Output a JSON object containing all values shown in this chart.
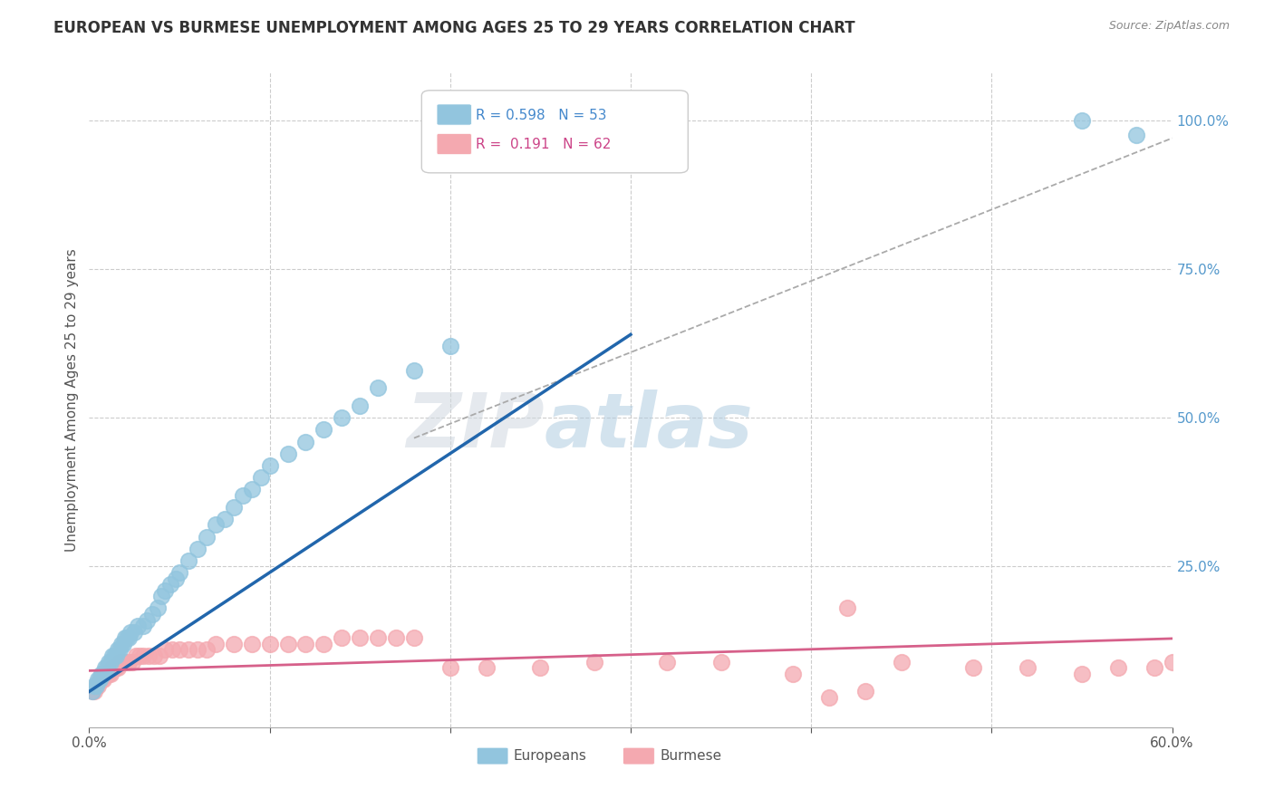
{
  "title": "EUROPEAN VS BURMESE UNEMPLOYMENT AMONG AGES 25 TO 29 YEARS CORRELATION CHART",
  "source": "Source: ZipAtlas.com",
  "ylabel": "Unemployment Among Ages 25 to 29 years",
  "watermark_zip": "ZIP",
  "watermark_atlas": "atlas",
  "xlim": [
    0.0,
    0.6
  ],
  "ylim": [
    -0.02,
    1.08
  ],
  "yticks_right": [
    0.25,
    0.5,
    0.75,
    1.0
  ],
  "ytickslabels_right": [
    "25.0%",
    "50.0%",
    "75.0%",
    "100.0%"
  ],
  "legend_r_european": "0.598",
  "legend_n_european": "53",
  "legend_r_burmese": "0.191",
  "legend_n_burmese": "62",
  "european_color": "#92c5de",
  "burmese_color": "#f4a9b0",
  "european_line_color": "#2166ac",
  "burmese_line_color": "#d6608a",
  "background_color": "#ffffff",
  "grid_color": "#cccccc",
  "eu_x": [
    0.002,
    0.003,
    0.004,
    0.005,
    0.006,
    0.007,
    0.008,
    0.009,
    0.01,
    0.011,
    0.012,
    0.013,
    0.014,
    0.015,
    0.016,
    0.017,
    0.018,
    0.019,
    0.02,
    0.021,
    0.022,
    0.023,
    0.025,
    0.027,
    0.03,
    0.032,
    0.035,
    0.038,
    0.04,
    0.042,
    0.045,
    0.048,
    0.05,
    0.055,
    0.06,
    0.065,
    0.07,
    0.075,
    0.08,
    0.085,
    0.09,
    0.095,
    0.1,
    0.11,
    0.12,
    0.13,
    0.14,
    0.15,
    0.16,
    0.18,
    0.2,
    0.55,
    0.58
  ],
  "eu_y": [
    0.04,
    0.05,
    0.05,
    0.06,
    0.06,
    0.07,
    0.07,
    0.08,
    0.08,
    0.09,
    0.09,
    0.1,
    0.1,
    0.1,
    0.11,
    0.11,
    0.12,
    0.12,
    0.13,
    0.13,
    0.13,
    0.14,
    0.14,
    0.15,
    0.15,
    0.16,
    0.17,
    0.18,
    0.2,
    0.21,
    0.22,
    0.23,
    0.24,
    0.26,
    0.28,
    0.3,
    0.32,
    0.33,
    0.35,
    0.37,
    0.38,
    0.4,
    0.42,
    0.44,
    0.46,
    0.48,
    0.5,
    0.52,
    0.55,
    0.58,
    0.62,
    1.0,
    0.975
  ],
  "bm_x": [
    0.002,
    0.003,
    0.004,
    0.005,
    0.006,
    0.007,
    0.008,
    0.009,
    0.01,
    0.011,
    0.012,
    0.013,
    0.014,
    0.015,
    0.016,
    0.017,
    0.018,
    0.019,
    0.02,
    0.022,
    0.024,
    0.026,
    0.028,
    0.03,
    0.033,
    0.036,
    0.039,
    0.042,
    0.046,
    0.05,
    0.055,
    0.06,
    0.065,
    0.07,
    0.08,
    0.09,
    0.1,
    0.11,
    0.12,
    0.13,
    0.14,
    0.15,
    0.16,
    0.17,
    0.18,
    0.2,
    0.22,
    0.25,
    0.28,
    0.32,
    0.35,
    0.39,
    0.42,
    0.45,
    0.49,
    0.52,
    0.55,
    0.57,
    0.59,
    0.6,
    0.41,
    0.43
  ],
  "bm_y": [
    0.04,
    0.04,
    0.05,
    0.05,
    0.06,
    0.06,
    0.06,
    0.07,
    0.07,
    0.07,
    0.07,
    0.08,
    0.08,
    0.08,
    0.08,
    0.09,
    0.09,
    0.09,
    0.09,
    0.09,
    0.09,
    0.1,
    0.1,
    0.1,
    0.1,
    0.1,
    0.1,
    0.11,
    0.11,
    0.11,
    0.11,
    0.11,
    0.11,
    0.12,
    0.12,
    0.12,
    0.12,
    0.12,
    0.12,
    0.12,
    0.13,
    0.13,
    0.13,
    0.13,
    0.13,
    0.08,
    0.08,
    0.08,
    0.09,
    0.09,
    0.09,
    0.07,
    0.18,
    0.09,
    0.08,
    0.08,
    0.07,
    0.08,
    0.08,
    0.09,
    0.03,
    0.04
  ]
}
